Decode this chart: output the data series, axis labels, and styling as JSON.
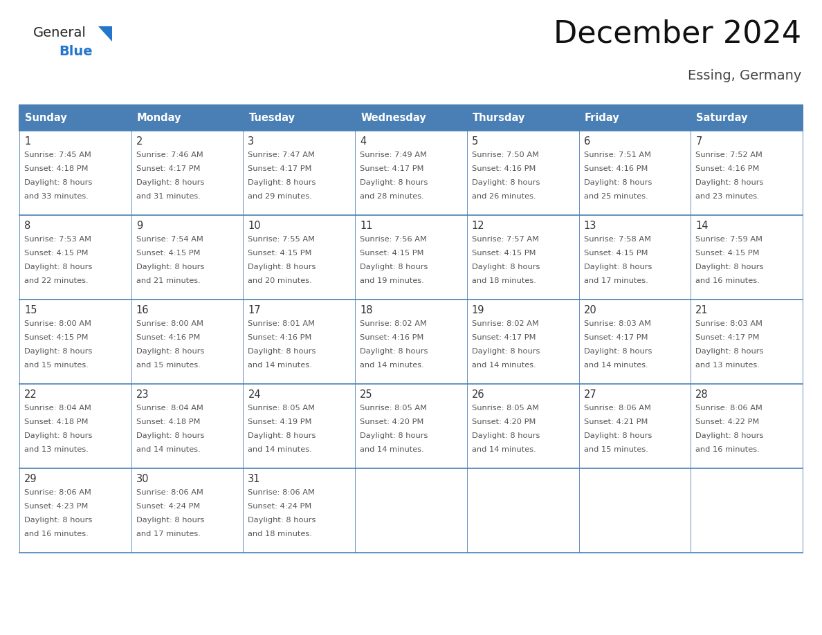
{
  "title": "December 2024",
  "subtitle": "Essing, Germany",
  "header_bg": "#4a7fb5",
  "header_text_color": "#ffffff",
  "cell_bg": "#ffffff",
  "cell_border_color": "#4a7fb5",
  "day_number_color": "#333333",
  "cell_text_color": "#555555",
  "days_of_week": [
    "Sunday",
    "Monday",
    "Tuesday",
    "Wednesday",
    "Thursday",
    "Friday",
    "Saturday"
  ],
  "logo_general_color": "#222222",
  "logo_blue_color": "#2277cc",
  "calendar_data": [
    [
      {
        "day": 1,
        "sunrise": "7:45 AM",
        "sunset": "4:18 PM",
        "daylight": "8 hours\nand 33 minutes."
      },
      {
        "day": 2,
        "sunrise": "7:46 AM",
        "sunset": "4:17 PM",
        "daylight": "8 hours\nand 31 minutes."
      },
      {
        "day": 3,
        "sunrise": "7:47 AM",
        "sunset": "4:17 PM",
        "daylight": "8 hours\nand 29 minutes."
      },
      {
        "day": 4,
        "sunrise": "7:49 AM",
        "sunset": "4:17 PM",
        "daylight": "8 hours\nand 28 minutes."
      },
      {
        "day": 5,
        "sunrise": "7:50 AM",
        "sunset": "4:16 PM",
        "daylight": "8 hours\nand 26 minutes."
      },
      {
        "day": 6,
        "sunrise": "7:51 AM",
        "sunset": "4:16 PM",
        "daylight": "8 hours\nand 25 minutes."
      },
      {
        "day": 7,
        "sunrise": "7:52 AM",
        "sunset": "4:16 PM",
        "daylight": "8 hours\nand 23 minutes."
      }
    ],
    [
      {
        "day": 8,
        "sunrise": "7:53 AM",
        "sunset": "4:15 PM",
        "daylight": "8 hours\nand 22 minutes."
      },
      {
        "day": 9,
        "sunrise": "7:54 AM",
        "sunset": "4:15 PM",
        "daylight": "8 hours\nand 21 minutes."
      },
      {
        "day": 10,
        "sunrise": "7:55 AM",
        "sunset": "4:15 PM",
        "daylight": "8 hours\nand 20 minutes."
      },
      {
        "day": 11,
        "sunrise": "7:56 AM",
        "sunset": "4:15 PM",
        "daylight": "8 hours\nand 19 minutes."
      },
      {
        "day": 12,
        "sunrise": "7:57 AM",
        "sunset": "4:15 PM",
        "daylight": "8 hours\nand 18 minutes."
      },
      {
        "day": 13,
        "sunrise": "7:58 AM",
        "sunset": "4:15 PM",
        "daylight": "8 hours\nand 17 minutes."
      },
      {
        "day": 14,
        "sunrise": "7:59 AM",
        "sunset": "4:15 PM",
        "daylight": "8 hours\nand 16 minutes."
      }
    ],
    [
      {
        "day": 15,
        "sunrise": "8:00 AM",
        "sunset": "4:15 PM",
        "daylight": "8 hours\nand 15 minutes."
      },
      {
        "day": 16,
        "sunrise": "8:00 AM",
        "sunset": "4:16 PM",
        "daylight": "8 hours\nand 15 minutes."
      },
      {
        "day": 17,
        "sunrise": "8:01 AM",
        "sunset": "4:16 PM",
        "daylight": "8 hours\nand 14 minutes."
      },
      {
        "day": 18,
        "sunrise": "8:02 AM",
        "sunset": "4:16 PM",
        "daylight": "8 hours\nand 14 minutes."
      },
      {
        "day": 19,
        "sunrise": "8:02 AM",
        "sunset": "4:17 PM",
        "daylight": "8 hours\nand 14 minutes."
      },
      {
        "day": 20,
        "sunrise": "8:03 AM",
        "sunset": "4:17 PM",
        "daylight": "8 hours\nand 14 minutes."
      },
      {
        "day": 21,
        "sunrise": "8:03 AM",
        "sunset": "4:17 PM",
        "daylight": "8 hours\nand 13 minutes."
      }
    ],
    [
      {
        "day": 22,
        "sunrise": "8:04 AM",
        "sunset": "4:18 PM",
        "daylight": "8 hours\nand 13 minutes."
      },
      {
        "day": 23,
        "sunrise": "8:04 AM",
        "sunset": "4:18 PM",
        "daylight": "8 hours\nand 14 minutes."
      },
      {
        "day": 24,
        "sunrise": "8:05 AM",
        "sunset": "4:19 PM",
        "daylight": "8 hours\nand 14 minutes."
      },
      {
        "day": 25,
        "sunrise": "8:05 AM",
        "sunset": "4:20 PM",
        "daylight": "8 hours\nand 14 minutes."
      },
      {
        "day": 26,
        "sunrise": "8:05 AM",
        "sunset": "4:20 PM",
        "daylight": "8 hours\nand 14 minutes."
      },
      {
        "day": 27,
        "sunrise": "8:06 AM",
        "sunset": "4:21 PM",
        "daylight": "8 hours\nand 15 minutes."
      },
      {
        "day": 28,
        "sunrise": "8:06 AM",
        "sunset": "4:22 PM",
        "daylight": "8 hours\nand 16 minutes."
      }
    ],
    [
      {
        "day": 29,
        "sunrise": "8:06 AM",
        "sunset": "4:23 PM",
        "daylight": "8 hours\nand 16 minutes."
      },
      {
        "day": 30,
        "sunrise": "8:06 AM",
        "sunset": "4:24 PM",
        "daylight": "8 hours\nand 17 minutes."
      },
      {
        "day": 31,
        "sunrise": "8:06 AM",
        "sunset": "4:24 PM",
        "daylight": "8 hours\nand 18 minutes."
      },
      null,
      null,
      null,
      null
    ]
  ]
}
